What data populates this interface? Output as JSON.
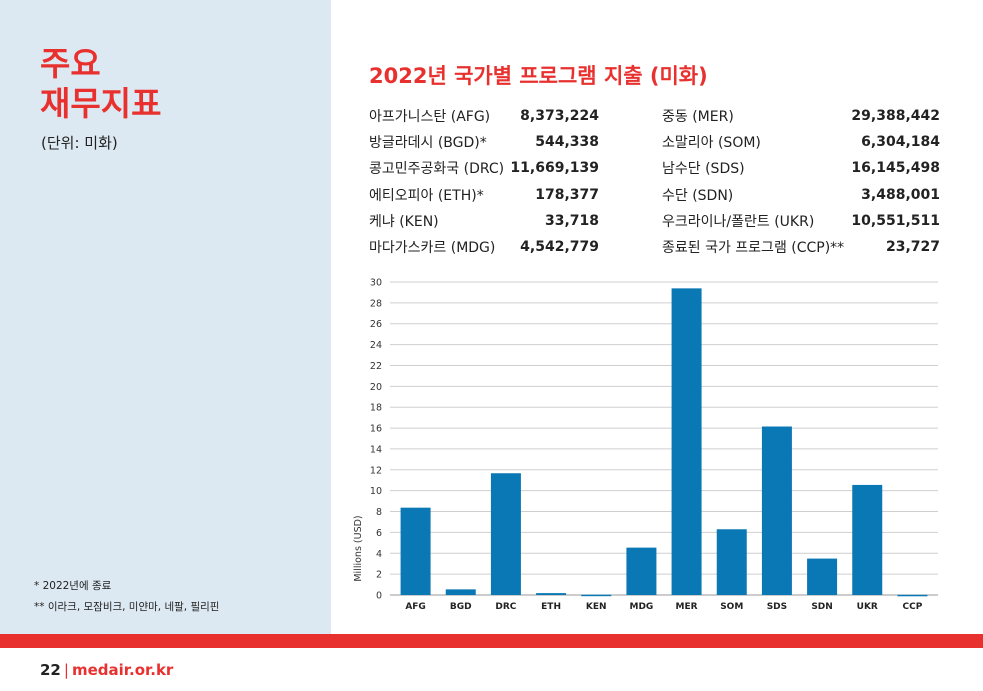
{
  "sidebar": {
    "title_line1": "주요",
    "title_line2": "재무지표",
    "unit": "(단위: 미화)",
    "footnote1": "* 2022년에 종료",
    "footnote2": "** 이라크, 모잠비크, 미얀마, 네팔, 필리핀"
  },
  "title": "2022년 국가별 프로그램 지출 (미화)",
  "table": {
    "left": [
      {
        "country": "아프가니스탄 (AFG)",
        "amount": "8,373,224"
      },
      {
        "country": "방글라데시 (BGD)*",
        "amount": "544,338"
      },
      {
        "country": "콩고민주공화국 (DRC)",
        "amount": "11,669,139"
      },
      {
        "country": "에티오피아 (ETH)*",
        "amount": "178,377"
      },
      {
        "country": "케냐 (KEN)",
        "amount": "33,718"
      },
      {
        "country": "마다가스카르 (MDG)",
        "amount": "4,542,779"
      }
    ],
    "right": [
      {
        "country": "중동 (MER)",
        "amount": "29,388,442"
      },
      {
        "country": "소말리아 (SOM)",
        "amount": "6,304,184"
      },
      {
        "country": "남수단 (SDS)",
        "amount": "16,145,498"
      },
      {
        "country": "수단 (SDN)",
        "amount": "3,488,001"
      },
      {
        "country": "우크라이나/폴란트 (UKR)",
        "amount": "10,551,511"
      },
      {
        "country": "종료된 국가 프로그램 (CCP)**",
        "amount": "23,727"
      }
    ]
  },
  "chart_data": {
    "type": "bar",
    "categories": [
      "AFG",
      "BGD",
      "DRC",
      "ETH",
      "KEN",
      "MDG",
      "MER",
      "SOM",
      "SDS",
      "SDN",
      "UKR",
      "CCP"
    ],
    "values": [
      8.37,
      0.54,
      11.67,
      0.18,
      0.03,
      4.54,
      29.39,
      6.3,
      16.15,
      3.49,
      10.55,
      0.02
    ],
    "ylabel": "Millions (USD)",
    "xlabel": "",
    "ylim": [
      0,
      30
    ],
    "yticks": [
      0,
      2,
      4,
      6,
      8,
      10,
      12,
      14,
      16,
      18,
      20,
      22,
      24,
      26,
      28,
      30
    ],
    "grid": true,
    "bar_color": "#0a78b4"
  },
  "footer": {
    "page_number": "22",
    "separator": "|",
    "website": "medair.or.kr"
  },
  "colors": {
    "accent": "#e8312f",
    "sidebar_bg": "#dde9f2",
    "bar": "#0a78b4"
  }
}
